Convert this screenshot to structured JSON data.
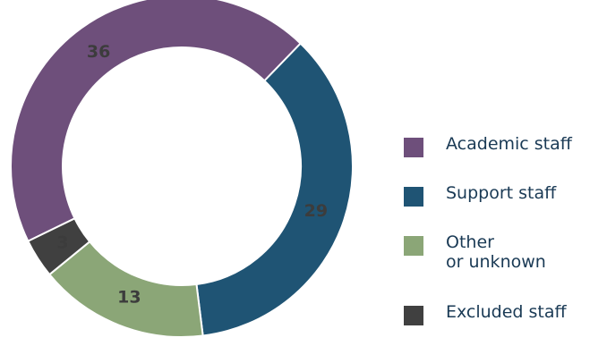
{
  "chart_data": {
    "type": "pie",
    "style": "donut",
    "slices": [
      {
        "label": "Academic staff",
        "value": 36,
        "color": "#6e4f7b"
      },
      {
        "label": "Support staff",
        "value": 29,
        "color": "#1f5474"
      },
      {
        "label": "Other\nor unknown",
        "value": 13,
        "color": "#8ba677"
      },
      {
        "label": "Excluded staff",
        "value": 3,
        "color": "#404040"
      }
    ],
    "legend_position": "right"
  }
}
